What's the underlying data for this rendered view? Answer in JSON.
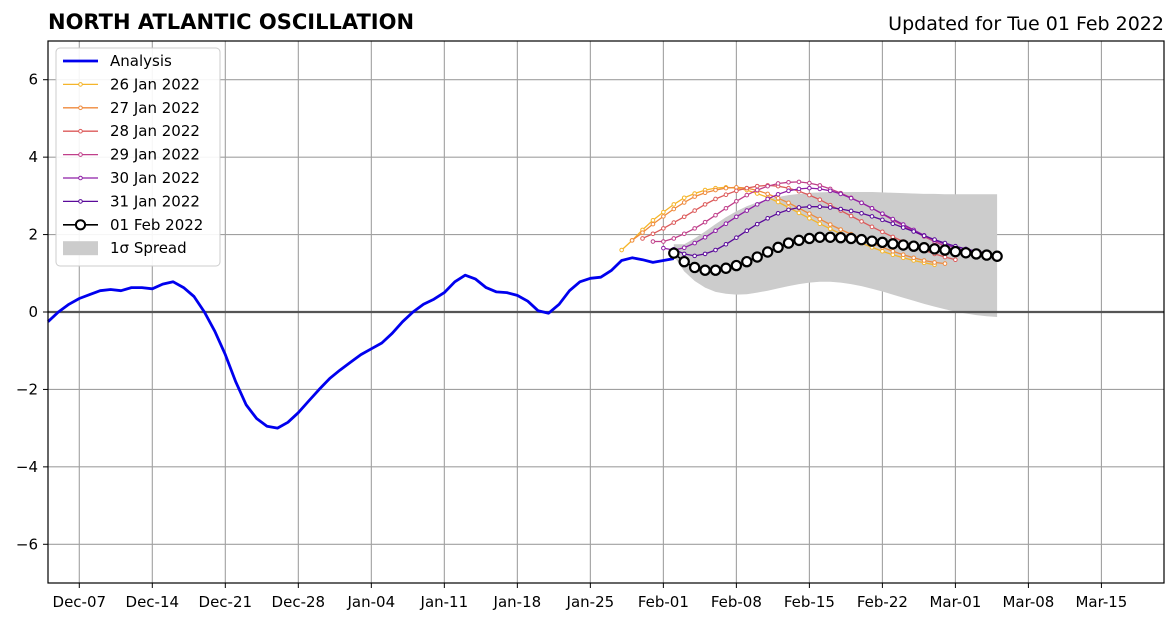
{
  "header": {
    "title": "NORTH ATLANTIC OSCILLATION",
    "updated": "Updated for Tue 01 Feb 2022"
  },
  "chart_data": {
    "type": "line",
    "title": "NORTH ATLANTIC OSCILLATION",
    "subtitle": "Updated for Tue 01 Feb 2022",
    "xlabel": "",
    "ylabel": "",
    "x_unit": "days since 2021-12-01 (reference for ticks)",
    "xlim": [
      "2021-12-04",
      "2022-03-21"
    ],
    "ylim": [
      -7,
      7
    ],
    "yticks": [
      -6,
      -4,
      -2,
      0,
      2,
      4,
      6
    ],
    "ytick_labels": [
      "−6",
      "−4",
      "−2",
      "0",
      "2",
      "4",
      "6"
    ],
    "xticks": [
      "2021-12-07",
      "2021-12-14",
      "2021-12-21",
      "2021-12-28",
      "2022-01-04",
      "2022-01-11",
      "2022-01-18",
      "2022-01-25",
      "2022-02-01",
      "2022-02-08",
      "2022-02-15",
      "2022-02-22",
      "2022-03-01",
      "2022-03-08",
      "2022-03-15"
    ],
    "xtick_labels": [
      "Dec-07",
      "Dec-14",
      "Dec-21",
      "Dec-28",
      "Jan-04",
      "Jan-11",
      "Jan-18",
      "Jan-25",
      "Feb-01",
      "Feb-08",
      "Feb-15",
      "Feb-22",
      "Mar-01",
      "Mar-08",
      "Mar-15"
    ],
    "grid": true,
    "legend_position": "top-left",
    "colors": {
      "analysis": "#0000ee",
      "jan26": "#f5b52a",
      "jan27": "#ef8a3c",
      "jan28": "#dc5a5a",
      "jan29": "#c03f8a",
      "jan30": "#8e1fa6",
      "jan31": "#5a0a9a",
      "feb01": "#000000",
      "spread": "#cccccc"
    },
    "analysis": {
      "name": "Analysis",
      "points": [
        [
          "2021-12-04",
          -0.25
        ],
        [
          "2021-12-05",
          0.0
        ],
        [
          "2021-12-06",
          0.2
        ],
        [
          "2021-12-07",
          0.35
        ],
        [
          "2021-12-08",
          0.45
        ],
        [
          "2021-12-09",
          0.55
        ],
        [
          "2021-12-10",
          0.58
        ],
        [
          "2021-12-11",
          0.55
        ],
        [
          "2021-12-12",
          0.63
        ],
        [
          "2021-12-13",
          0.63
        ],
        [
          "2021-12-14",
          0.6
        ],
        [
          "2021-12-15",
          0.72
        ],
        [
          "2021-12-16",
          0.78
        ],
        [
          "2021-12-17",
          0.63
        ],
        [
          "2021-12-18",
          0.4
        ],
        [
          "2021-12-19",
          0.0
        ],
        [
          "2021-12-20",
          -0.5
        ],
        [
          "2021-12-21",
          -1.1
        ],
        [
          "2021-12-22",
          -1.8
        ],
        [
          "2021-12-23",
          -2.4
        ],
        [
          "2021-12-24",
          -2.75
        ],
        [
          "2021-12-25",
          -2.95
        ],
        [
          "2021-12-26",
          -3.0
        ],
        [
          "2021-12-27",
          -2.85
        ],
        [
          "2021-12-28",
          -2.6
        ],
        [
          "2021-12-29",
          -2.3
        ],
        [
          "2021-12-30",
          -2.0
        ],
        [
          "2021-12-31",
          -1.72
        ],
        [
          "2022-01-01",
          -1.5
        ],
        [
          "2022-01-02",
          -1.3
        ],
        [
          "2022-01-03",
          -1.1
        ],
        [
          "2022-01-04",
          -0.95
        ],
        [
          "2022-01-05",
          -0.8
        ],
        [
          "2022-01-06",
          -0.55
        ],
        [
          "2022-01-07",
          -0.25
        ],
        [
          "2022-01-08",
          0.0
        ],
        [
          "2022-01-09",
          0.2
        ],
        [
          "2022-01-10",
          0.33
        ],
        [
          "2022-01-11",
          0.5
        ],
        [
          "2022-01-12",
          0.78
        ],
        [
          "2022-01-13",
          0.95
        ],
        [
          "2022-01-14",
          0.85
        ],
        [
          "2022-01-15",
          0.63
        ],
        [
          "2022-01-16",
          0.52
        ],
        [
          "2022-01-17",
          0.5
        ],
        [
          "2022-01-18",
          0.43
        ],
        [
          "2022-01-19",
          0.28
        ],
        [
          "2022-01-20",
          0.03
        ],
        [
          "2022-01-21",
          -0.03
        ],
        [
          "2022-01-22",
          0.2
        ],
        [
          "2022-01-23",
          0.55
        ],
        [
          "2022-01-24",
          0.78
        ],
        [
          "2022-01-25",
          0.87
        ],
        [
          "2022-01-26",
          0.9
        ],
        [
          "2022-01-27",
          1.07
        ],
        [
          "2022-01-28",
          1.33
        ],
        [
          "2022-01-29",
          1.4
        ],
        [
          "2022-01-30",
          1.35
        ],
        [
          "2022-01-31",
          1.28
        ],
        [
          "2022-02-01",
          1.33
        ],
        [
          "2022-02-02",
          1.38
        ]
      ]
    },
    "forecasts": [
      {
        "name": "26 Jan 2022",
        "color_key": "jan26",
        "start": "2022-01-28",
        "values": [
          1.6,
          1.85,
          2.12,
          2.37,
          2.58,
          2.78,
          2.95,
          3.06,
          3.15,
          3.2,
          3.22,
          3.2,
          3.15,
          3.06,
          2.96,
          2.84,
          2.7,
          2.56,
          2.42,
          2.28,
          2.15,
          2.02,
          1.9,
          1.78,
          1.67,
          1.57,
          1.48,
          1.4,
          1.33,
          1.27,
          1.22
        ]
      },
      {
        "name": "27 Jan 2022",
        "color_key": "jan27",
        "start": "2022-01-29",
        "values": [
          1.85,
          2.05,
          2.27,
          2.47,
          2.66,
          2.83,
          2.98,
          3.08,
          3.15,
          3.2,
          3.22,
          3.2,
          3.14,
          3.05,
          2.94,
          2.82,
          2.68,
          2.54,
          2.4,
          2.26,
          2.13,
          2.01,
          1.89,
          1.78,
          1.67,
          1.57,
          1.48,
          1.4,
          1.33,
          1.28,
          1.25
        ]
      },
      {
        "name": "28 Jan 2022",
        "color_key": "jan28",
        "start": "2022-01-30",
        "values": [
          1.9,
          2.02,
          2.16,
          2.31,
          2.46,
          2.62,
          2.78,
          2.92,
          3.03,
          3.13,
          3.2,
          3.25,
          3.27,
          3.25,
          3.2,
          3.12,
          3.02,
          2.9,
          2.76,
          2.62,
          2.48,
          2.34,
          2.2,
          2.07,
          1.94,
          1.82,
          1.7,
          1.6,
          1.5,
          1.42,
          1.35
        ]
      },
      {
        "name": "29 Jan 2022",
        "color_key": "jan29",
        "start": "2022-01-31",
        "values": [
          1.82,
          1.82,
          1.9,
          2.02,
          2.16,
          2.32,
          2.5,
          2.68,
          2.86,
          3.02,
          3.15,
          3.25,
          3.32,
          3.35,
          3.36,
          3.33,
          3.27,
          3.18,
          3.07,
          2.95,
          2.82,
          2.68,
          2.53,
          2.38,
          2.23,
          2.09,
          1.95,
          1.82,
          1.7,
          1.6,
          1.52
        ]
      },
      {
        "name": "30 Jan 2022",
        "color_key": "jan30",
        "start": "2022-02-01",
        "values": [
          1.65,
          1.6,
          1.66,
          1.78,
          1.93,
          2.1,
          2.28,
          2.46,
          2.62,
          2.78,
          2.92,
          3.04,
          3.13,
          3.18,
          3.2,
          3.18,
          3.13,
          3.05,
          2.94,
          2.82,
          2.68,
          2.54,
          2.4,
          2.26,
          2.12,
          1.98,
          1.86,
          1.75,
          1.66,
          1.58,
          1.53
        ]
      },
      {
        "name": "31 Jan 2022",
        "color_key": "jan31",
        "start": "2022-02-02",
        "values": [
          1.62,
          1.5,
          1.45,
          1.5,
          1.6,
          1.75,
          1.92,
          2.1,
          2.27,
          2.42,
          2.55,
          2.64,
          2.7,
          2.72,
          2.72,
          2.7,
          2.66,
          2.61,
          2.55,
          2.47,
          2.38,
          2.28,
          2.18,
          2.08,
          1.97,
          1.87,
          1.78,
          1.7,
          1.63,
          1.57,
          1.52
        ]
      },
      {
        "name": "01 Feb 2022",
        "color_key": "feb01",
        "start": "2022-02-02",
        "large": true,
        "values": [
          1.52,
          1.3,
          1.15,
          1.08,
          1.08,
          1.13,
          1.2,
          1.3,
          1.42,
          1.55,
          1.67,
          1.78,
          1.85,
          1.9,
          1.93,
          1.93,
          1.92,
          1.9,
          1.87,
          1.83,
          1.8,
          1.76,
          1.73,
          1.7,
          1.66,
          1.63,
          1.6,
          1.56,
          1.53,
          1.5,
          1.47,
          1.44
        ]
      }
    ],
    "spread": {
      "name": "1σ Spread",
      "start": "2022-02-02",
      "upper": [
        1.75,
        1.75,
        1.9,
        2.08,
        2.27,
        2.45,
        2.6,
        2.73,
        2.83,
        2.91,
        2.97,
        3.02,
        3.05,
        3.08,
        3.09,
        3.1,
        3.1,
        3.1,
        3.1,
        3.1,
        3.09,
        3.08,
        3.07,
        3.06,
        3.05,
        3.05,
        3.04,
        3.04,
        3.04,
        3.04,
        3.04,
        3.04
      ],
      "lower": [
        1.45,
        1.05,
        0.8,
        0.63,
        0.52,
        0.47,
        0.45,
        0.46,
        0.5,
        0.55,
        0.61,
        0.67,
        0.72,
        0.76,
        0.78,
        0.78,
        0.76,
        0.72,
        0.67,
        0.6,
        0.53,
        0.45,
        0.37,
        0.29,
        0.21,
        0.14,
        0.07,
        0.01,
        -0.04,
        -0.08,
        -0.11,
        -0.13
      ]
    }
  }
}
